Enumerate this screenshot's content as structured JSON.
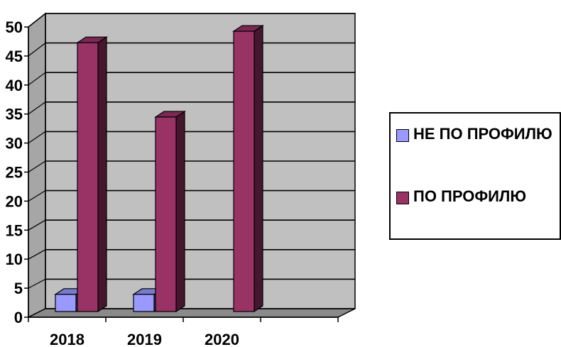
{
  "chart_data": {
    "type": "bar",
    "categories": [
      "2018",
      "2019",
      "2020",
      ""
    ],
    "series": [
      {
        "name": "НЕ ПО ПРОФИЛЮ",
        "values": [
          3,
          3,
          0,
          null
        ],
        "color": "#9999ff"
      },
      {
        "name": "ПО ПРОФИЛЮ",
        "values": [
          47,
          34,
          49,
          null
        ],
        "color": "#993366"
      }
    ],
    "ylim": [
      0,
      50
    ],
    "yticks": [
      0,
      5,
      10,
      15,
      20,
      25,
      30,
      35,
      40,
      45,
      50
    ],
    "grid": true,
    "legend_position": "right",
    "plot_background": "#c0c0c0"
  }
}
